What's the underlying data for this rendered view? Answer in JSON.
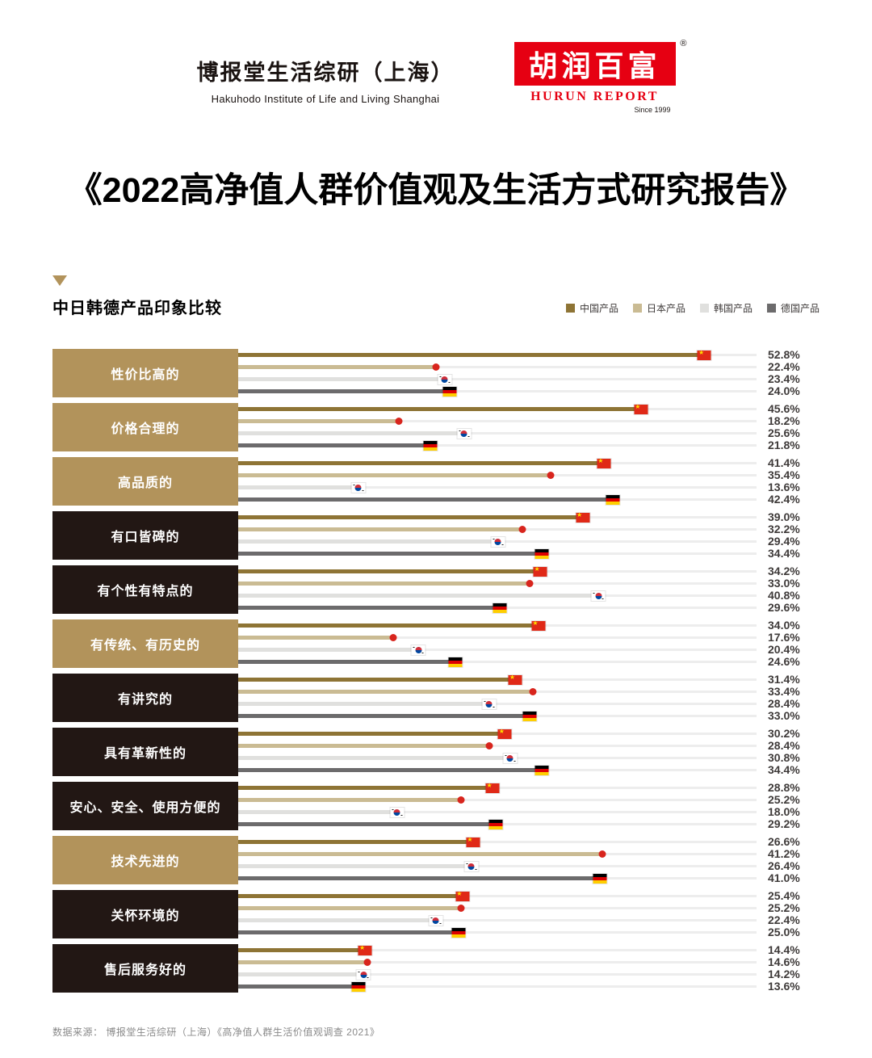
{
  "header": {
    "hakuhodo": {
      "title": "博报堂生活综研（上海）",
      "subtitle": "Hakuhodo Institute of Life and Living Shanghai"
    },
    "hurun": {
      "logo_text": "胡润百富",
      "reg": "®",
      "name": "HURUN REPORT",
      "since": "Since 1999",
      "brand_color": "#e60012"
    },
    "main_title": "《2022高净值人群价值观及生活方式研究报告》"
  },
  "section": {
    "marker_color": "#b2935b",
    "title": "中日韩德产品印象比较"
  },
  "chart_data": {
    "type": "bar",
    "orientation": "horizontal",
    "title": "中日韩德产品印象比较",
    "value_suffix": "%",
    "x_max": 58.7,
    "grid": false,
    "legend_position": "top-right",
    "series": [
      {
        "name": "中国产品",
        "flag": "cn",
        "color": "#8e7435"
      },
      {
        "name": "日本产品",
        "flag": "jp",
        "color": "#cabb93"
      },
      {
        "name": "韩国产品",
        "flag": "kr",
        "color": "#e0e0de"
      },
      {
        "name": "德国产品",
        "flag": "de",
        "color": "#6c6b6c"
      }
    ],
    "groups": [
      {
        "label": "性价比高的",
        "box": "gold",
        "values": [
          52.8,
          22.4,
          23.4,
          24.0
        ]
      },
      {
        "label": "价格合理的",
        "box": "gold",
        "values": [
          45.6,
          18.2,
          25.6,
          21.8
        ]
      },
      {
        "label": "高品质的",
        "box": "gold",
        "values": [
          41.4,
          35.4,
          13.6,
          42.4
        ]
      },
      {
        "label": "有口皆碑的",
        "box": "dark",
        "values": [
          39.0,
          32.2,
          29.4,
          34.4
        ]
      },
      {
        "label": "有个性有特点的",
        "box": "dark",
        "values": [
          34.2,
          33.0,
          40.8,
          29.6
        ]
      },
      {
        "label": "有传统、有历史的",
        "box": "gold",
        "values": [
          34.0,
          17.6,
          20.4,
          24.6
        ]
      },
      {
        "label": "有讲究的",
        "box": "dark",
        "values": [
          31.4,
          33.4,
          28.4,
          33.0
        ]
      },
      {
        "label": "具有革新性的",
        "box": "dark",
        "values": [
          30.2,
          28.4,
          30.8,
          34.4
        ]
      },
      {
        "label": "安心、安全、使用方便的",
        "box": "dark",
        "values": [
          28.8,
          25.2,
          18.0,
          29.2
        ]
      },
      {
        "label": "技术先进的",
        "box": "gold",
        "values": [
          26.6,
          41.2,
          26.4,
          41.0
        ]
      },
      {
        "label": "关怀环境的",
        "box": "dark",
        "values": [
          25.4,
          25.2,
          22.4,
          25.0
        ]
      },
      {
        "label": "售后服务好的",
        "box": "dark",
        "values": [
          14.4,
          14.6,
          14.2,
          13.6
        ]
      }
    ],
    "box_colors": {
      "gold": "#b2935b",
      "dark": "#221714"
    }
  },
  "footer": {
    "source": "数据来源： 博报堂生活综研（上海）《高净值人群生活价值观调查 2021》"
  }
}
